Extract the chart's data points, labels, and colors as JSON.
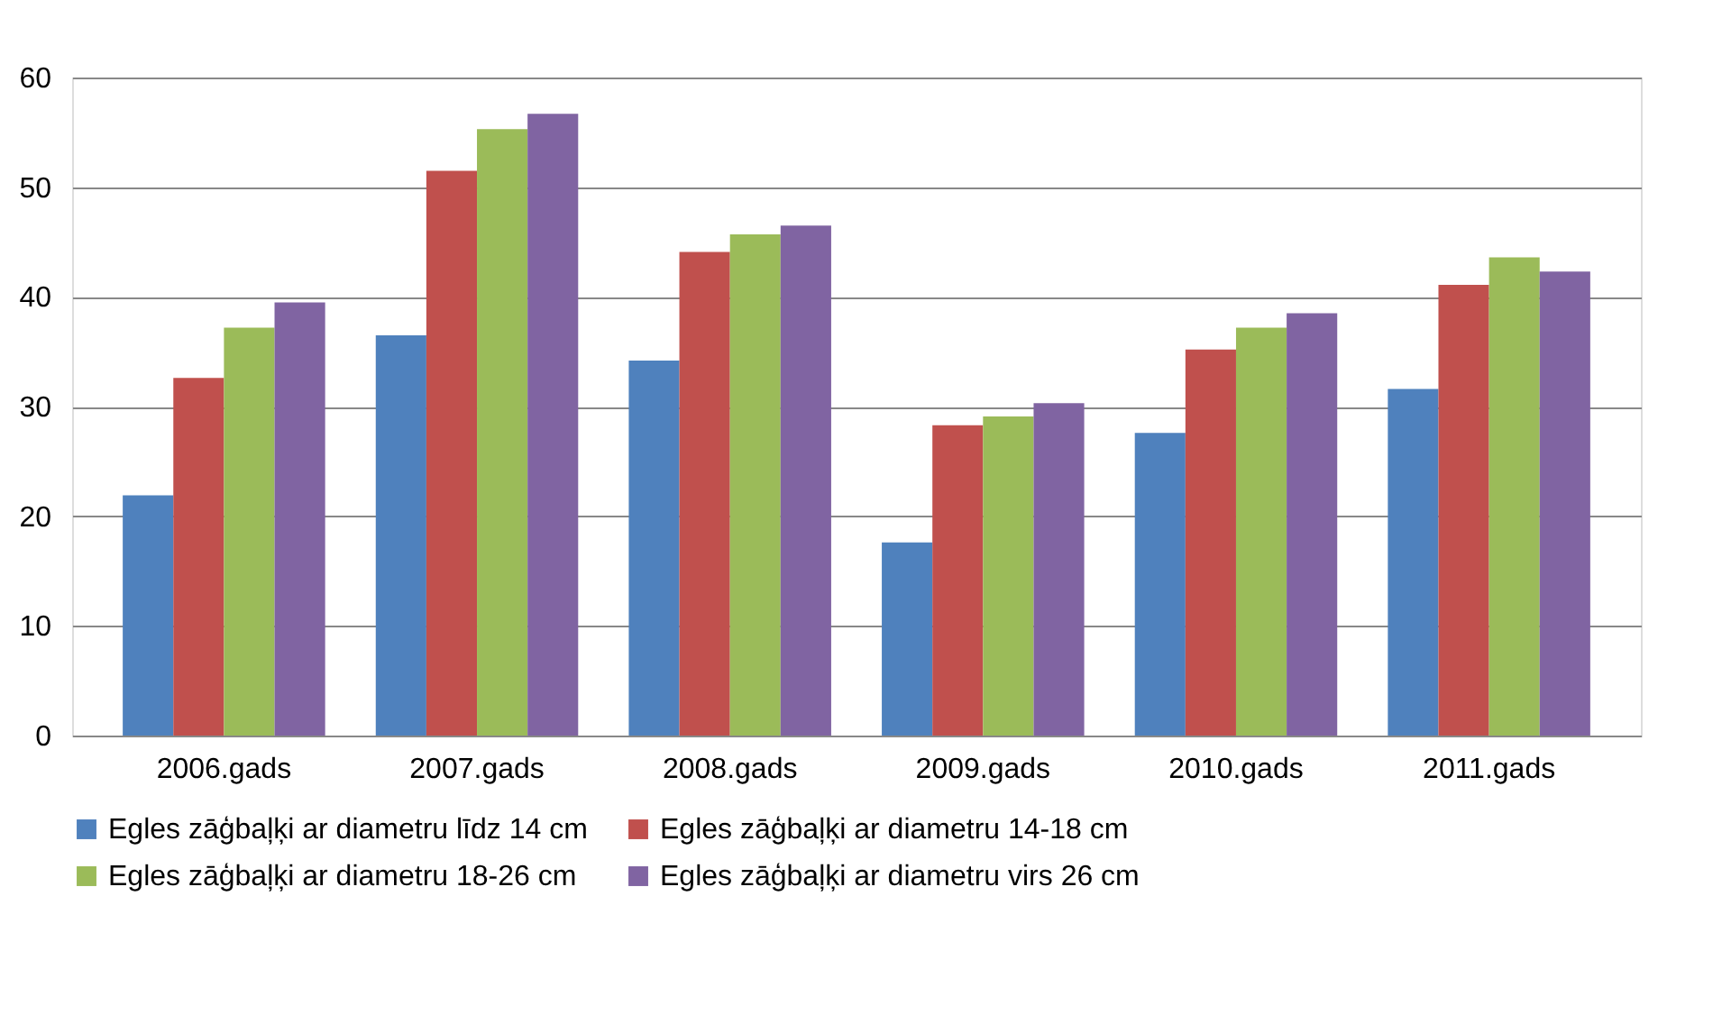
{
  "chart_data": {
    "type": "bar",
    "categories": [
      "2006.gads",
      "2007.gads",
      "2008.gads",
      "2009.gads",
      "2010.gads",
      "2011.gads"
    ],
    "series": [
      {
        "name": "Egles zāģbaļķi ar diametru līdz 14 cm",
        "color": "#4f81bd",
        "values": [
          21.9,
          36.5,
          34.2,
          17.6,
          27.6,
          31.6
        ]
      },
      {
        "name": "Egles zāģbaļķi ar diametru 14-18 cm",
        "color": "#c0504d",
        "values": [
          32.6,
          51.5,
          44.1,
          28.3,
          35.2,
          41.1
        ]
      },
      {
        "name": "Egles zāģbaļķi ar diametru 18-26 cm",
        "color": "#9bbb59",
        "values": [
          37.2,
          55.3,
          45.7,
          29.1,
          37.2,
          43.6
        ]
      },
      {
        "name": "Egles zāģbaļķi ar diametru virs 26 cm",
        "color": "#8064a2",
        "values": [
          39.5,
          56.7,
          46.5,
          30.3,
          38.5,
          42.3
        ]
      }
    ],
    "ylim": [
      0,
      60
    ],
    "yticks": [
      0,
      10,
      20,
      30,
      40,
      50,
      60
    ],
    "grid": "y",
    "legend": "bottom"
  }
}
